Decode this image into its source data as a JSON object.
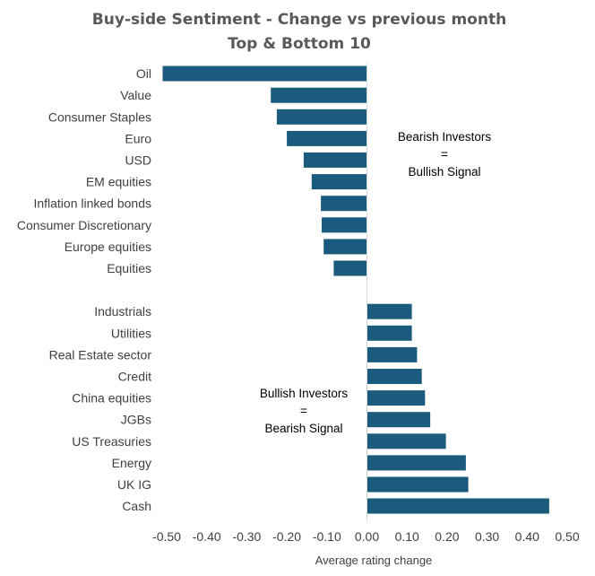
{
  "chart_data": {
    "type": "bar",
    "orientation": "horizontal",
    "title": "Buy-side Sentiment - Change vs previous month",
    "subtitle": "Top & Bottom 10",
    "xlabel": "Average rating change",
    "ylabel": "",
    "xlim": [
      -0.5,
      0.5
    ],
    "xticks": [
      -0.5,
      -0.4,
      -0.3,
      -0.2,
      -0.1,
      0.0,
      0.1,
      0.2,
      0.3,
      0.4,
      0.5
    ],
    "xtick_labels": [
      "-0.50",
      "-0.40",
      "-0.30",
      "-0.20",
      "-0.10",
      "0.00",
      "0.10",
      "0.20",
      "0.30",
      "0.40",
      "0.50"
    ],
    "grid": false,
    "bar_color": "#1b5b7d",
    "categories": [
      "Oil",
      "Value",
      "Consumer Staples",
      "Euro",
      "USD",
      "EM equities",
      "Inflation linked bonds",
      "Consumer Discretionary",
      "Europe equities",
      "Equities",
      "",
      "Industrials",
      "Utilities",
      "Real Estate sector",
      "Credit",
      "China equities",
      "JGBs",
      "US Treasuries",
      "Energy",
      "UK IG",
      "Cash"
    ],
    "values": [
      -0.51,
      -0.24,
      -0.225,
      -0.2,
      -0.158,
      -0.138,
      -0.115,
      -0.113,
      -0.108,
      -0.083,
      null,
      0.112,
      0.112,
      0.125,
      0.137,
      0.145,
      0.158,
      0.197,
      0.247,
      0.253,
      0.455
    ],
    "annotations": [
      {
        "lines": [
          "Bearish Investors",
          "=",
          "Bullish Signal"
        ]
      },
      {
        "lines": [
          "Bullish Investors",
          "=",
          "Bearish Signal"
        ]
      }
    ]
  }
}
